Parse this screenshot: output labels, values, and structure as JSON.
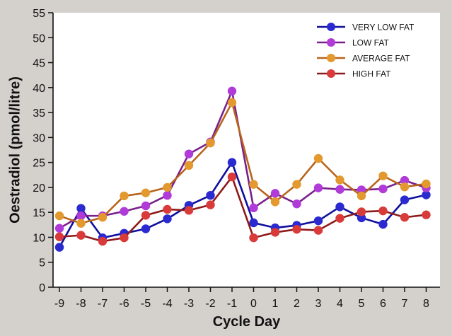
{
  "chart_data": {
    "type": "line",
    "title": "",
    "xlabel": "Cycle Day",
    "ylabel": "Oestradiol (pmol/litre)",
    "x": [
      -9,
      -8,
      -7,
      -6,
      -5,
      -4,
      -3,
      -2,
      -1,
      0,
      1,
      2,
      3,
      4,
      5,
      6,
      7,
      8
    ],
    "xtick_labels": [
      "-9",
      "-8",
      "-7",
      "-6",
      "-5",
      "-4",
      "-3",
      "-2",
      "-1",
      "0",
      "1",
      "2",
      "3",
      "4",
      "5",
      "6",
      "7",
      "8"
    ],
    "ylim": [
      0,
      55
    ],
    "yticks": [
      0,
      5,
      10,
      15,
      20,
      25,
      30,
      35,
      40,
      45,
      50,
      55
    ],
    "ytick_labels": [
      "0",
      "5",
      "10",
      "15",
      "20",
      "25",
      "30",
      "35",
      "40",
      "45",
      "50",
      "55"
    ],
    "grid": false,
    "legend_position": "top-right",
    "series": [
      {
        "name": "VERY LOW FAT",
        "color": "#2a2ad0",
        "values": [
          8.0,
          15.8,
          9.9,
          10.8,
          11.7,
          13.7,
          16.4,
          18.4,
          25.0,
          12.9,
          11.9,
          12.4,
          13.3,
          16.1,
          13.9,
          12.6,
          17.5,
          18.5
        ]
      },
      {
        "name": "LOW FAT",
        "color": "#b03bd9",
        "values": [
          11.8,
          14.3,
          14.3,
          15.2,
          16.3,
          18.4,
          26.7,
          29.1,
          39.3,
          15.9,
          18.8,
          16.7,
          19.9,
          19.6,
          19.5,
          19.7,
          21.4,
          19.9
        ]
      },
      {
        "name": "AVERAGE FAT",
        "color": "#e3992e",
        "values": [
          14.3,
          12.8,
          14.0,
          18.3,
          18.9,
          20.0,
          24.4,
          28.9,
          37.0,
          20.6,
          17.1,
          20.6,
          25.8,
          21.5,
          18.3,
          22.3,
          20.1,
          20.7
        ]
      },
      {
        "name": "HIGH FAT",
        "color": "#d93a3a",
        "values": [
          10.1,
          10.4,
          9.2,
          9.9,
          14.4,
          15.6,
          15.4,
          16.5,
          22.1,
          9.9,
          11.0,
          11.6,
          11.4,
          13.8,
          15.1,
          15.3,
          14.0,
          14.5
        ]
      }
    ],
    "line_colors": {
      "VERY LOW FAT": "#0f0f9e",
      "LOW FAT": "#7a1f8a",
      "AVERAGE FAT": "#b8651c",
      "HIGH FAT": "#8e1a1a"
    }
  }
}
